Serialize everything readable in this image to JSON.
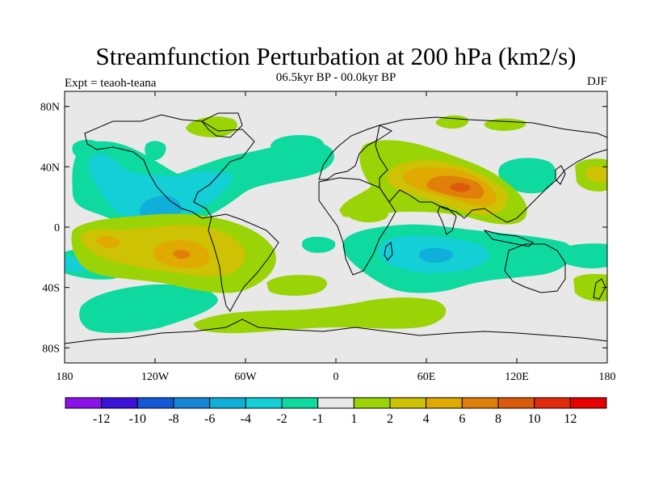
{
  "title": "Streamfunction Perturbation at 200 hPa (km2/s)",
  "subtitle": "06.5kyr BP - 00.0kyr BP",
  "left_label": "Expt = teaoh-teana",
  "right_label": "DJF",
  "axes": {
    "lat_ticks": [
      "80N",
      "40N",
      "0",
      "40S",
      "80S"
    ],
    "lon_ticks": [
      "180",
      "120W",
      "60W",
      "0",
      "60E",
      "120E",
      "180"
    ]
  },
  "colorbar": {
    "labels": [
      "-12",
      "-10",
      "-8",
      "-6",
      "-4",
      "-2",
      "-1",
      "1",
      "2",
      "4",
      "6",
      "8",
      "10",
      "12"
    ],
    "colors": [
      "#8b12e8",
      "#3a12d8",
      "#1458d6",
      "#1686d6",
      "#0fafd9",
      "#14cfd6",
      "#0ed99e",
      "#e8e8e8",
      "#9ad406",
      "#cdc203",
      "#e0aa02",
      "#e0800a",
      "#dc5a0c",
      "#e02a0c",
      "#e80000"
    ]
  },
  "chart_data": {
    "type": "heatmap",
    "variable": "Streamfunction Perturbation at 200 hPa (km2/s)",
    "season": "DJF",
    "anomalies": [
      {
        "name": "south-asia-max",
        "lon": 80,
        "lat": 25,
        "value": 8
      },
      {
        "name": "north-america-min",
        "lon": -100,
        "lat": 15,
        "value": -4
      },
      {
        "name": "south-pacific-max",
        "lon": -100,
        "lat": -20,
        "value": 8
      },
      {
        "name": "indian-ocean-min",
        "lon": 60,
        "lat": -20,
        "value": -4
      }
    ]
  }
}
